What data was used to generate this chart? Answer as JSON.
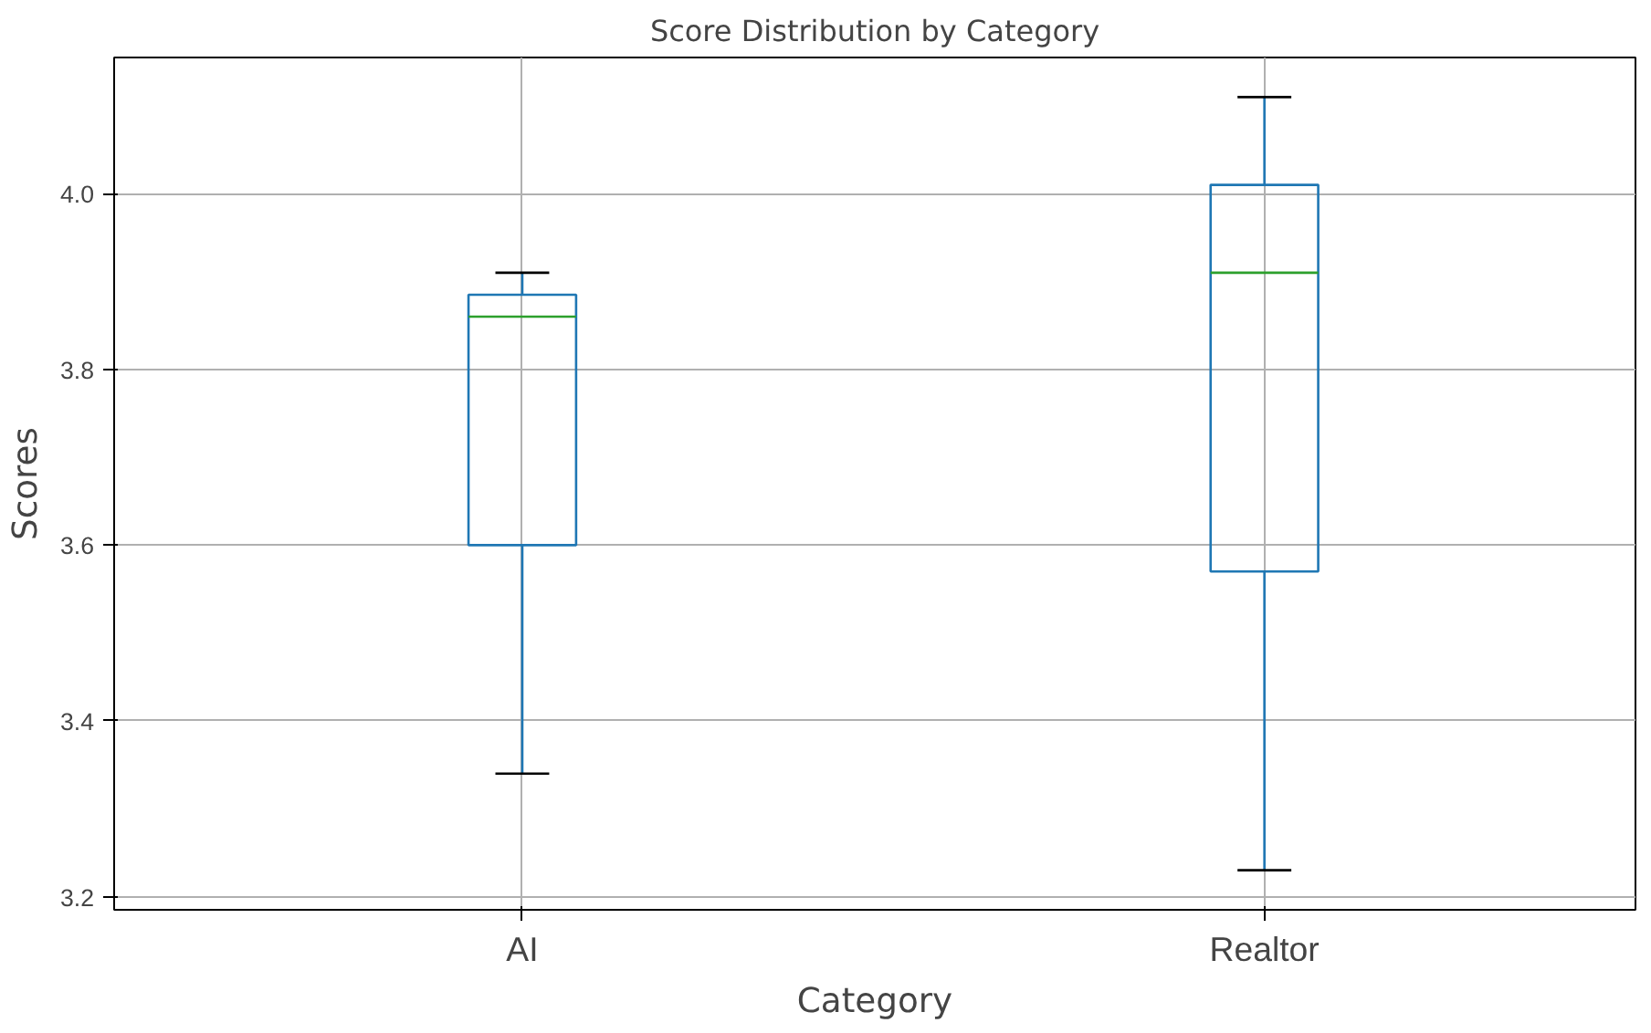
{
  "chart_data": {
    "type": "box",
    "title": "Score Distribution by Category",
    "xlabel": "Category",
    "ylabel": "Scores",
    "categories": [
      "AI",
      "Realtor"
    ],
    "boxes": [
      {
        "low": 3.34,
        "q1": 3.6,
        "median": 3.86,
        "q3": 3.885,
        "high": 3.91
      },
      {
        "low": 3.23,
        "q1": 3.57,
        "median": 3.91,
        "q3": 4.01,
        "high": 4.11
      }
    ],
    "color": "#1f77b4",
    "ylim": [
      3.185,
      4.155
    ],
    "yticks": [
      {
        "value": 3.2,
        "label": "3.2"
      },
      {
        "value": 3.4,
        "label": "3.4"
      },
      {
        "value": 3.6,
        "label": "3.6"
      },
      {
        "value": 3.8,
        "label": "3.8"
      },
      {
        "value": 4.0,
        "label": "4.0"
      }
    ],
    "grid": true
  }
}
